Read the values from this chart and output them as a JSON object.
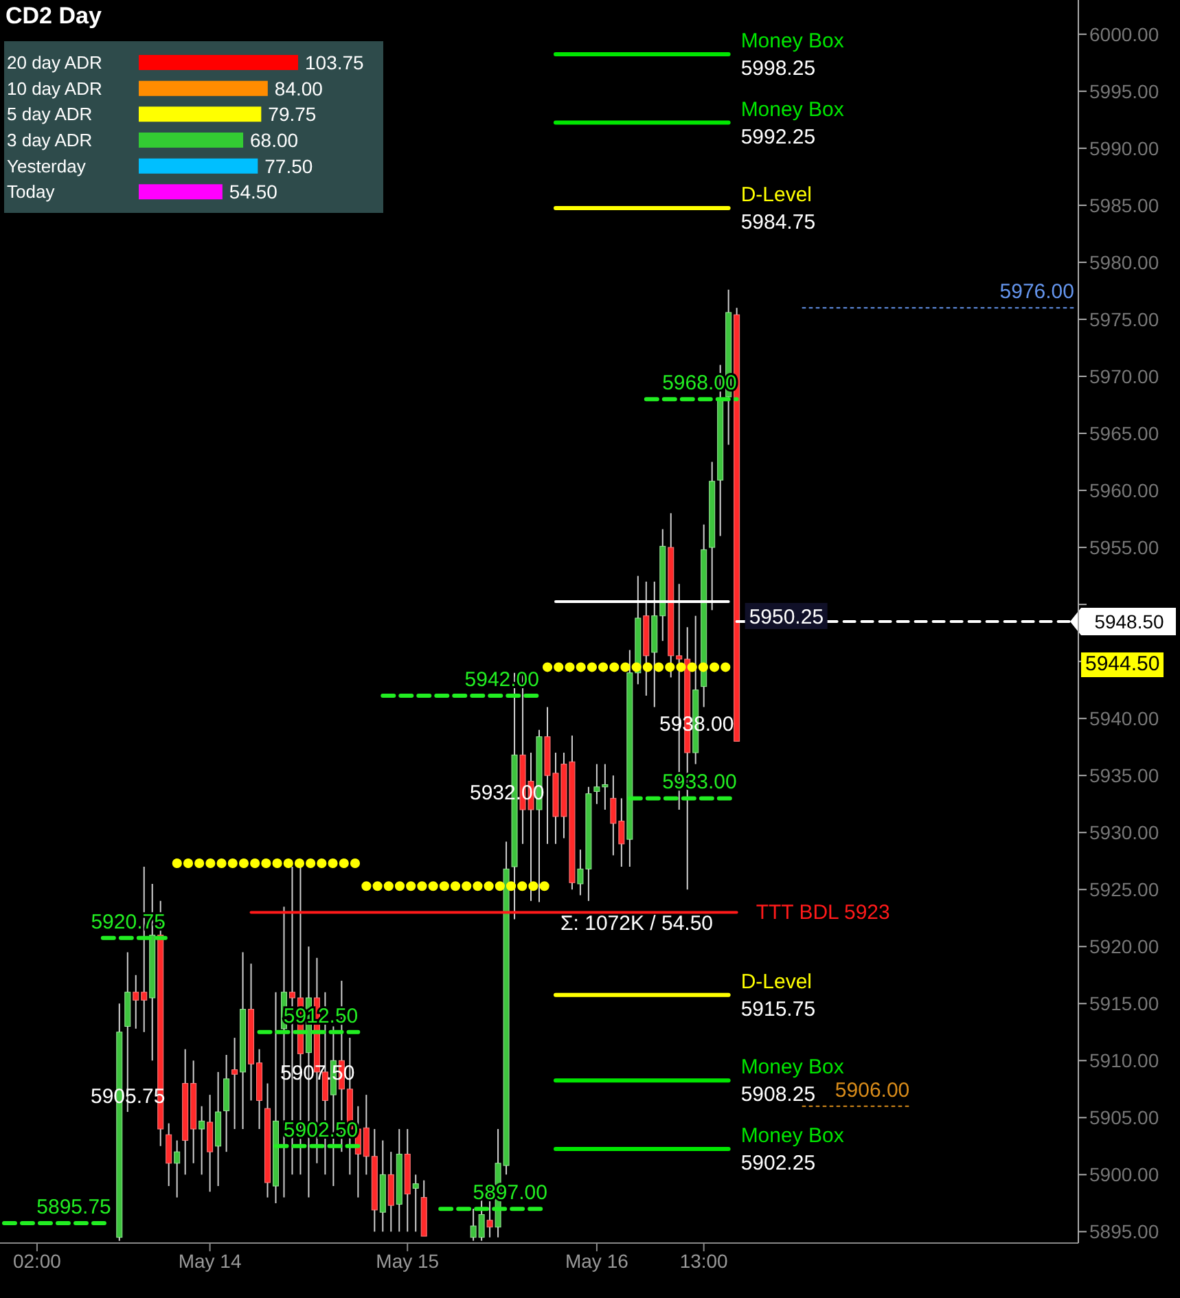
{
  "chart_data": [
    {
      "type": "candlestick",
      "title": "CD2 Day",
      "categories": [
        null,
        null,
        null,
        null,
        "02:00",
        null,
        null,
        null,
        null,
        null,
        null,
        null,
        null,
        null,
        null,
        null,
        null,
        null,
        null,
        null,
        null,
        null,
        null,
        null,
        null,
        "May 14",
        null,
        null,
        null,
        null,
        null,
        null,
        null,
        null,
        null,
        null,
        null,
        null,
        null,
        null,
        null,
        null,
        null,
        null,
        null,
        null,
        null,
        null,
        null,
        "May 15",
        null,
        null,
        null,
        null,
        null,
        null,
        null,
        null,
        null,
        null,
        null,
        null,
        null,
        null,
        null,
        null,
        null,
        null,
        null,
        null,
        null,
        null,
        "May 16",
        null,
        null,
        null,
        null,
        null,
        null,
        null,
        null,
        null,
        null,
        null,
        null,
        "13:00",
        null,
        null,
        null,
        null,
        null,
        null,
        null,
        null,
        null,
        null,
        null,
        null,
        null,
        null,
        null,
        null,
        null,
        null,
        null,
        null,
        null,
        null,
        null,
        null,
        null,
        null,
        null,
        null,
        null,
        null,
        null,
        null,
        null,
        null,
        null,
        null,
        null,
        null,
        null,
        null,
        null,
        null,
        null,
        null,
        null
      ],
      "ohlc": [
        null,
        null,
        null,
        null,
        null,
        null,
        null,
        null,
        null,
        null,
        null,
        null,
        null,
        null,
        [
          5894.5,
          5915,
          5894.2,
          5912.5
        ],
        [
          5913,
          5919.5,
          5905.5,
          5916
        ],
        [
          5916,
          5917.5,
          5912.8,
          5915.3
        ],
        [
          5916,
          5927,
          5912.5,
          5915.3
        ],
        [
          5915.5,
          5925.5,
          5910,
          5921
        ],
        [
          5921,
          5924,
          5902.5,
          5904
        ],
        [
          5903.5,
          5904.5,
          5899,
          5901
        ],
        [
          5901,
          5903,
          5898,
          5902
        ],
        [
          5908,
          5911,
          5900,
          5903
        ],
        [
          5908,
          5910,
          5901,
          5904
        ],
        [
          5904,
          5906,
          5900,
          5904.7
        ],
        [
          5904.6,
          5907,
          5898.5,
          5902
        ],
        [
          5902.5,
          5909,
          5899,
          5905.5
        ],
        [
          5905.6,
          5910.5,
          5902,
          5908.4
        ],
        [
          5909.2,
          5912,
          5904,
          5908.8
        ],
        [
          5909,
          5919.5,
          5904,
          5914.5
        ],
        [
          5914.5,
          5918.5,
          5906.5,
          5909.7
        ],
        [
          5909.8,
          5911,
          5904,
          5906.5
        ],
        [
          5905.8,
          5908,
          5898,
          5899.3
        ],
        [
          5899,
          5916,
          5897.5,
          5904.7
        ],
        [
          5912.8,
          5923.5,
          5898,
          5916
        ],
        [
          5916,
          5927,
          5900,
          5915.5
        ],
        [
          5915.5,
          5927,
          5900,
          5910.6
        ],
        [
          5910.7,
          5920,
          5898,
          5915.5
        ],
        [
          5915.5,
          5919,
          5901,
          5909
        ],
        [
          5909,
          5916,
          5900,
          5906.5
        ],
        [
          5907,
          5913,
          5899,
          5910
        ],
        [
          5910,
          5917,
          5902,
          5907.5
        ],
        [
          5907.5,
          5912,
          5900,
          5904
        ],
        [
          5904,
          5906,
          5898,
          5901.8
        ],
        [
          5904.1,
          5907,
          5900,
          5901.6
        ],
        [
          5901.6,
          5904,
          5895,
          5896.9
        ],
        [
          5896.7,
          5903,
          5895,
          5900
        ],
        [
          5900,
          5902,
          5895,
          5897.3
        ],
        [
          5897.4,
          5904,
          5895,
          5901.8
        ],
        [
          5901.8,
          5904,
          5895,
          5898.3
        ],
        [
          5898.8,
          5900,
          5895,
          5899.2
        ],
        [
          5898,
          5899.5,
          5894.6,
          5894.6
        ],
        null,
        null,
        null,
        null,
        null,
        [
          5894.5,
          5897,
          5894.2,
          5895.5
        ],
        [
          5894.5,
          5898,
          5894.2,
          5896.5
        ],
        [
          5896,
          5899,
          5894.5,
          5895.4
        ],
        [
          5895.4,
          5904,
          5894.5,
          5901
        ],
        [
          5900.8,
          5929.2,
          5900,
          5926.8
        ],
        [
          5927,
          5944,
          5922.4,
          5936.8
        ],
        [
          5936.8,
          5944,
          5929,
          5932
        ],
        [
          5934.5,
          5937,
          5924,
          5932
        ],
        [
          5932,
          5939,
          5923.9,
          5938.4
        ],
        [
          5938.4,
          5941,
          5929,
          5935
        ],
        [
          5935.2,
          5937,
          5929,
          5931.4
        ],
        [
          5936,
          5937,
          5929.5,
          5931.4
        ],
        [
          5936.2,
          5938.5,
          5925,
          5925.6
        ],
        [
          5925.5,
          5928.5,
          5924.5,
          5926.8
        ],
        [
          5926.8,
          5934,
          5924,
          5933.4
        ],
        [
          5933.6,
          5936,
          5932.5,
          5934
        ],
        [
          5934,
          5936,
          5932,
          5934.2
        ],
        [
          5933,
          5935,
          5928,
          5930.8
        ],
        [
          5931,
          5933,
          5927,
          5929
        ],
        [
          5929.4,
          5946,
          5927,
          5944
        ],
        [
          5944,
          5952.5,
          5943,
          5948.8
        ],
        [
          5949,
          5952,
          5942,
          5945.5
        ],
        [
          5945.8,
          5952,
          5941,
          5949
        ],
        [
          5949,
          5956.6,
          5946.8,
          5955.1
        ],
        [
          5955,
          5958,
          5943.6,
          5945.5
        ],
        [
          5945.5,
          5951.8,
          5932,
          5945.2
        ],
        [
          5945.2,
          5948,
          5925,
          5937
        ],
        [
          5937,
          5949,
          5936,
          5942.5
        ],
        [
          5942.8,
          5957,
          5941,
          5954.8
        ],
        [
          5955,
          5962.5,
          5949.5,
          5960.8
        ],
        [
          5960.9,
          5971,
          5956,
          5968
        ],
        [
          5968.2,
          5977.6,
          5964,
          5975.6
        ],
        [
          5975.4,
          5976,
          5938,
          5938
        ],
        null,
        null,
        null,
        null,
        null,
        null,
        null,
        null,
        null,
        null,
        null,
        null,
        null,
        null,
        null,
        null,
        null,
        null,
        null,
        null,
        null,
        null,
        null,
        null,
        null,
        null,
        null,
        null,
        null,
        null,
        null,
        null,
        null,
        null,
        null,
        null,
        null,
        null,
        null,
        null,
        null
      ],
      "ylim": [
        5894,
        6003
      ],
      "yticks": [
        {
          "value": 5895,
          "label": "5895.00"
        },
        {
          "value": 5900,
          "label": "5900.00"
        },
        {
          "value": 5905,
          "label": "5905.00"
        },
        {
          "value": 5910,
          "label": "5910.00"
        },
        {
          "value": 5915,
          "label": "5915.00"
        },
        {
          "value": 5920,
          "label": "5920.00"
        },
        {
          "value": 5925,
          "label": "5925.00"
        },
        {
          "value": 5930,
          "label": "5930.00"
        },
        {
          "value": 5935,
          "label": "5935.00"
        },
        {
          "value": 5940,
          "label": "5940.00"
        },
        {
          "value": 5945,
          "label": null
        },
        {
          "value": 5950,
          "label": null
        },
        {
          "value": 5955,
          "label": "5955.00"
        },
        {
          "value": 5960,
          "label": "5960.00"
        },
        {
          "value": 5965,
          "label": "5965.00"
        },
        {
          "value": 5970,
          "label": "5970.00"
        },
        {
          "value": 5975,
          "label": "5975.00"
        },
        {
          "value": 5980,
          "label": "5980.00"
        },
        {
          "value": 5985,
          "label": "5985.00"
        },
        {
          "value": 5990,
          "label": "5990.00"
        },
        {
          "value": 5995,
          "label": "5995.00"
        },
        {
          "value": 6000,
          "label": "6000.00"
        }
      ],
      "ref_lines": [
        {
          "axis": "y",
          "value": 5998.25,
          "label": "Money Box\n5998.25",
          "color": "#00e600",
          "line_style": "solid"
        },
        {
          "axis": "y",
          "value": 5992.25,
          "label": "Money Box\n5992.25",
          "color": "#00e600",
          "line_style": "solid"
        },
        {
          "axis": "y",
          "value": 5984.75,
          "label": "D-Level\n5984.75",
          "color": "#ffff00",
          "line_style": "solid"
        },
        {
          "axis": "y",
          "value": 5915.75,
          "label": "D-Level\n5915.75",
          "color": "#ffff00",
          "line_style": "solid"
        },
        {
          "axis": "y",
          "value": 5908.25,
          "label": "Money Box\n5908.25",
          "color": "#00e600",
          "line_style": "solid"
        },
        {
          "axis": "y",
          "value": 5902.25,
          "label": "Money Box\n5902.25",
          "color": "#00e600",
          "line_style": "solid"
        },
        {
          "axis": "y",
          "value": 5923,
          "label": "TTT BDL 5923",
          "color": "#ff1a1a",
          "line_style": "solid"
        },
        {
          "axis": "y",
          "value": 5950.25,
          "label": "5950.25",
          "color": "#ffffff",
          "line_style": "solid"
        },
        {
          "axis": "y",
          "value": 5948.5,
          "label": "5948.50",
          "color": "#ffffff",
          "line_style": "dashed"
        },
        {
          "axis": "y",
          "value": 5944.5,
          "color": "#ffff00",
          "line_style": "dotted"
        },
        {
          "axis": "y",
          "value": 5927.3,
          "color": "#ffff00",
          "line_style": "dotted"
        },
        {
          "axis": "y",
          "value": 5925.3,
          "color": "#ffff00",
          "line_style": "dotted"
        },
        {
          "axis": "y",
          "value": 5920.75,
          "label": "5920.75",
          "color": "#22ee22",
          "line_style": "dashed"
        },
        {
          "axis": "y",
          "value": 5912.5,
          "label": "5912.50",
          "color": "#22ee22",
          "line_style": "dashed"
        },
        {
          "axis": "y",
          "value": 5902.5,
          "label": "5902.50",
          "color": "#22ee22",
          "line_style": "dashed"
        },
        {
          "axis": "y",
          "value": 5895.75,
          "label": "5895.75",
          "color": "#22ee22",
          "line_style": "dashed"
        },
        {
          "axis": "y",
          "value": 5942,
          "label": "5942.00",
          "color": "#22ee22",
          "line_style": "dashed"
        },
        {
          "axis": "y",
          "value": 5897,
          "label": "5897.00",
          "color": "#22ee22",
          "line_style": "dashed"
        },
        {
          "axis": "y",
          "value": 5968,
          "label": "5968.00",
          "color": "#22ee22",
          "line_style": "dashed"
        },
        {
          "axis": "y",
          "value": 5933,
          "label": "5933.00",
          "color": "#22ee22",
          "line_style": "dashed"
        },
        {
          "axis": "y",
          "value": 5976,
          "label": "5976.00",
          "color": "#6495ed",
          "line_style": "dotted"
        },
        {
          "axis": "y",
          "value": 5906,
          "label": "5906.00",
          "color": "#d98c1a",
          "line_style": "dotted"
        }
      ],
      "annotations": [
        "5905.75",
        "5907.50",
        "5932.00",
        "5938.00",
        "Σ: 1072K / 54.50",
        "5944.50"
      ]
    },
    {
      "type": "bar",
      "orientation": "horizontal",
      "categories": [
        "20 day ADR",
        "10 day ADR",
        "5 day ADR",
        "3 day ADR",
        "Yesterday",
        "Today"
      ],
      "values": [
        103.75,
        84,
        79.75,
        68,
        77.5,
        54.5
      ],
      "colors": [
        "#ff0000",
        "#ff8c00",
        "#ffff00",
        "#33cc33",
        "#00bfff",
        "#ff00ff"
      ],
      "value_labels": [
        "103.75",
        "84.00",
        "79.75",
        "68.00",
        "77.50",
        "54.50"
      ]
    }
  ]
}
